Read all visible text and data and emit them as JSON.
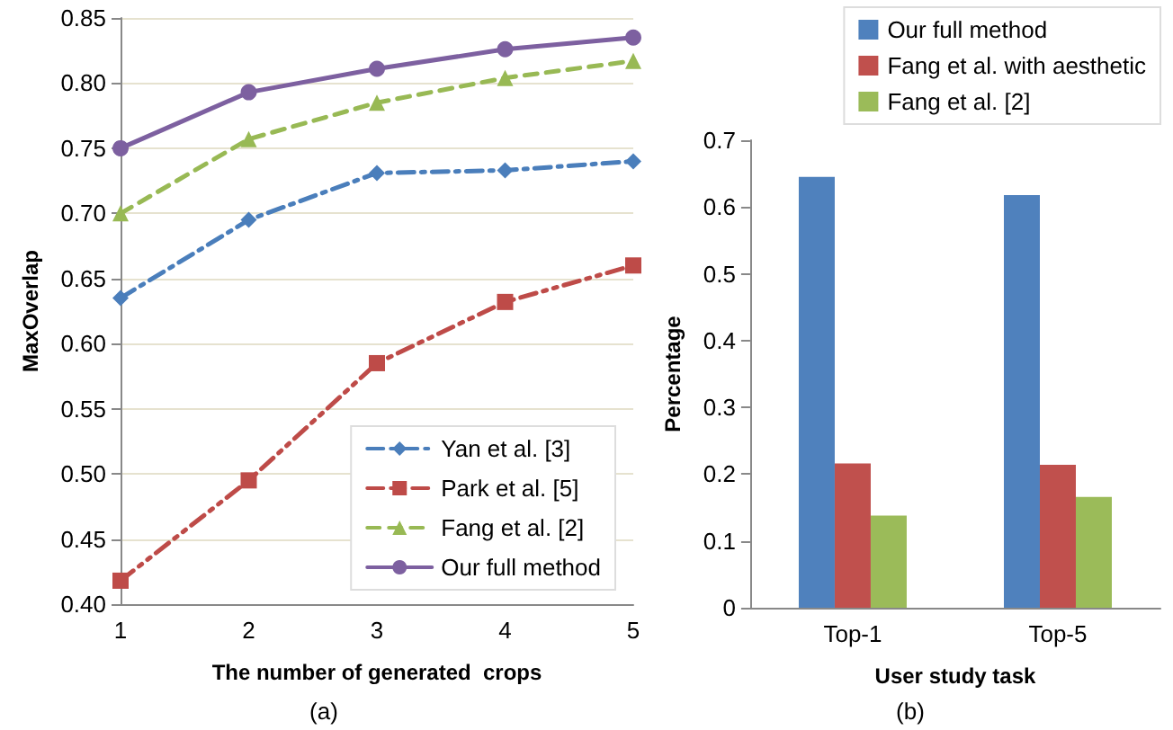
{
  "chart_data": [
    {
      "type": "line",
      "xlabel": "The number of generated  crops",
      "ylabel": "MaxOverlap",
      "annotations": [
        "(a)"
      ],
      "categories": [
        "1",
        "2",
        "3",
        "4",
        "5"
      ],
      "ylim": [
        0.4,
        0.85
      ],
      "yticks": [
        {
          "value": 0.4,
          "label": "0.40"
        },
        {
          "value": 0.45,
          "label": "0.45"
        },
        {
          "value": 0.5,
          "label": "0.50"
        },
        {
          "value": 0.55,
          "label": "0.55"
        },
        {
          "value": 0.6,
          "label": "0.60"
        },
        {
          "value": 0.65,
          "label": "0.65"
        },
        {
          "value": 0.7,
          "label": "0.70"
        },
        {
          "value": 0.75,
          "label": "0.75"
        },
        {
          "value": 0.8,
          "label": "0.80"
        },
        {
          "value": 0.85,
          "label": "0.85"
        }
      ],
      "grid": "y",
      "legend": "bottom right",
      "series": [
        {
          "name": "Yan et al. [3]",
          "color": "#4a7ebb",
          "marker": "diamond",
          "line_style": "dashdot",
          "values": [
            0.635,
            0.695,
            0.731,
            0.733,
            0.74
          ]
        },
        {
          "name": "Park et al. [5]",
          "color": "#be4b48",
          "marker": "square",
          "line_style": "dashdotdot",
          "values": [
            0.418,
            0.495,
            0.585,
            0.632,
            0.66
          ]
        },
        {
          "name": "Fang et al. [2]",
          "color": "#98b954",
          "marker": "triangle",
          "line_style": "dashed",
          "values": [
            0.7,
            0.757,
            0.785,
            0.804,
            0.817
          ]
        },
        {
          "name": "Our full method",
          "color": "#7d60a0",
          "marker": "circle",
          "line_style": "solid",
          "values": [
            0.75,
            0.793,
            0.811,
            0.826,
            0.835
          ]
        }
      ]
    },
    {
      "type": "bar",
      "xlabel": "User study task",
      "ylabel": "Percentage",
      "annotations": [
        "(b)"
      ],
      "categories": [
        "Top-1",
        "Top-5"
      ],
      "ylim": [
        0,
        0.7
      ],
      "yticks": [
        0,
        0.1,
        0.2,
        0.3,
        0.4,
        0.5,
        0.6,
        0.7
      ],
      "grid": false,
      "legend": "top right",
      "series": [
        {
          "name": "Our full method",
          "color": "#4f81bd",
          "values": [
            0.645,
            0.618
          ]
        },
        {
          "name": "Fang et al. with aesthetic",
          "color": "#c0504d",
          "values": [
            0.216,
            0.214
          ]
        },
        {
          "name": "Fang et al. [2]",
          "color": "#9bbb59",
          "values": [
            0.138,
            0.166
          ]
        }
      ]
    }
  ]
}
